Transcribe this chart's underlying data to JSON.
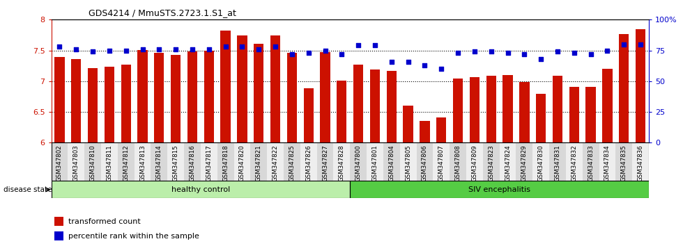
{
  "title": "GDS4214 / MmuSTS.2723.1.S1_at",
  "categories": [
    "GSM347802",
    "GSM347803",
    "GSM347810",
    "GSM347811",
    "GSM347812",
    "GSM347813",
    "GSM347814",
    "GSM347815",
    "GSM347816",
    "GSM347817",
    "GSM347818",
    "GSM347820",
    "GSM347821",
    "GSM347822",
    "GSM347825",
    "GSM347826",
    "GSM347827",
    "GSM347828",
    "GSM347800",
    "GSM347801",
    "GSM347804",
    "GSM347805",
    "GSM347806",
    "GSM347807",
    "GSM347808",
    "GSM347809",
    "GSM347823",
    "GSM347824",
    "GSM347829",
    "GSM347830",
    "GSM347831",
    "GSM347832",
    "GSM347833",
    "GSM347834",
    "GSM347835",
    "GSM347836"
  ],
  "bar_values": [
    7.39,
    7.36,
    7.21,
    7.23,
    7.27,
    7.51,
    7.46,
    7.43,
    7.48,
    7.49,
    7.82,
    7.74,
    7.61,
    7.74,
    7.46,
    6.89,
    7.47,
    7.01,
    7.27,
    7.19,
    7.17,
    6.6,
    6.35,
    6.41,
    7.04,
    7.07,
    7.09,
    7.1,
    6.99,
    6.8,
    7.09,
    6.91,
    6.91,
    7.2,
    7.77,
    7.84
  ],
  "percentile_values": [
    78,
    76,
    74,
    75,
    75,
    76,
    76,
    76,
    76,
    76,
    78,
    78,
    76,
    78,
    72,
    73,
    75,
    72,
    79,
    79,
    66,
    66,
    63,
    60,
    73,
    74,
    74,
    73,
    72,
    68,
    74,
    73,
    72,
    75,
    80,
    80
  ],
  "ymin": 6.0,
  "ymax": 8.0,
  "yticks": [
    6.0,
    6.5,
    7.0,
    7.5,
    8.0
  ],
  "ytick_labels": [
    "6",
    "6.5",
    "7",
    "7.5",
    "8"
  ],
  "right_yticks": [
    0,
    25,
    50,
    75,
    100
  ],
  "right_ytick_labels": [
    "0",
    "25",
    "50",
    "75",
    "100%"
  ],
  "bar_color": "#cc1100",
  "dot_color": "#0000cc",
  "healthy_count": 18,
  "group1_label": "healthy control",
  "group2_label": "SIV encephalitis",
  "group1_color": "#bbeeaa",
  "group2_color": "#55cc44",
  "legend_bar_label": "transformed count",
  "legend_dot_label": "percentile rank within the sample",
  "disease_state_label": "disease state"
}
